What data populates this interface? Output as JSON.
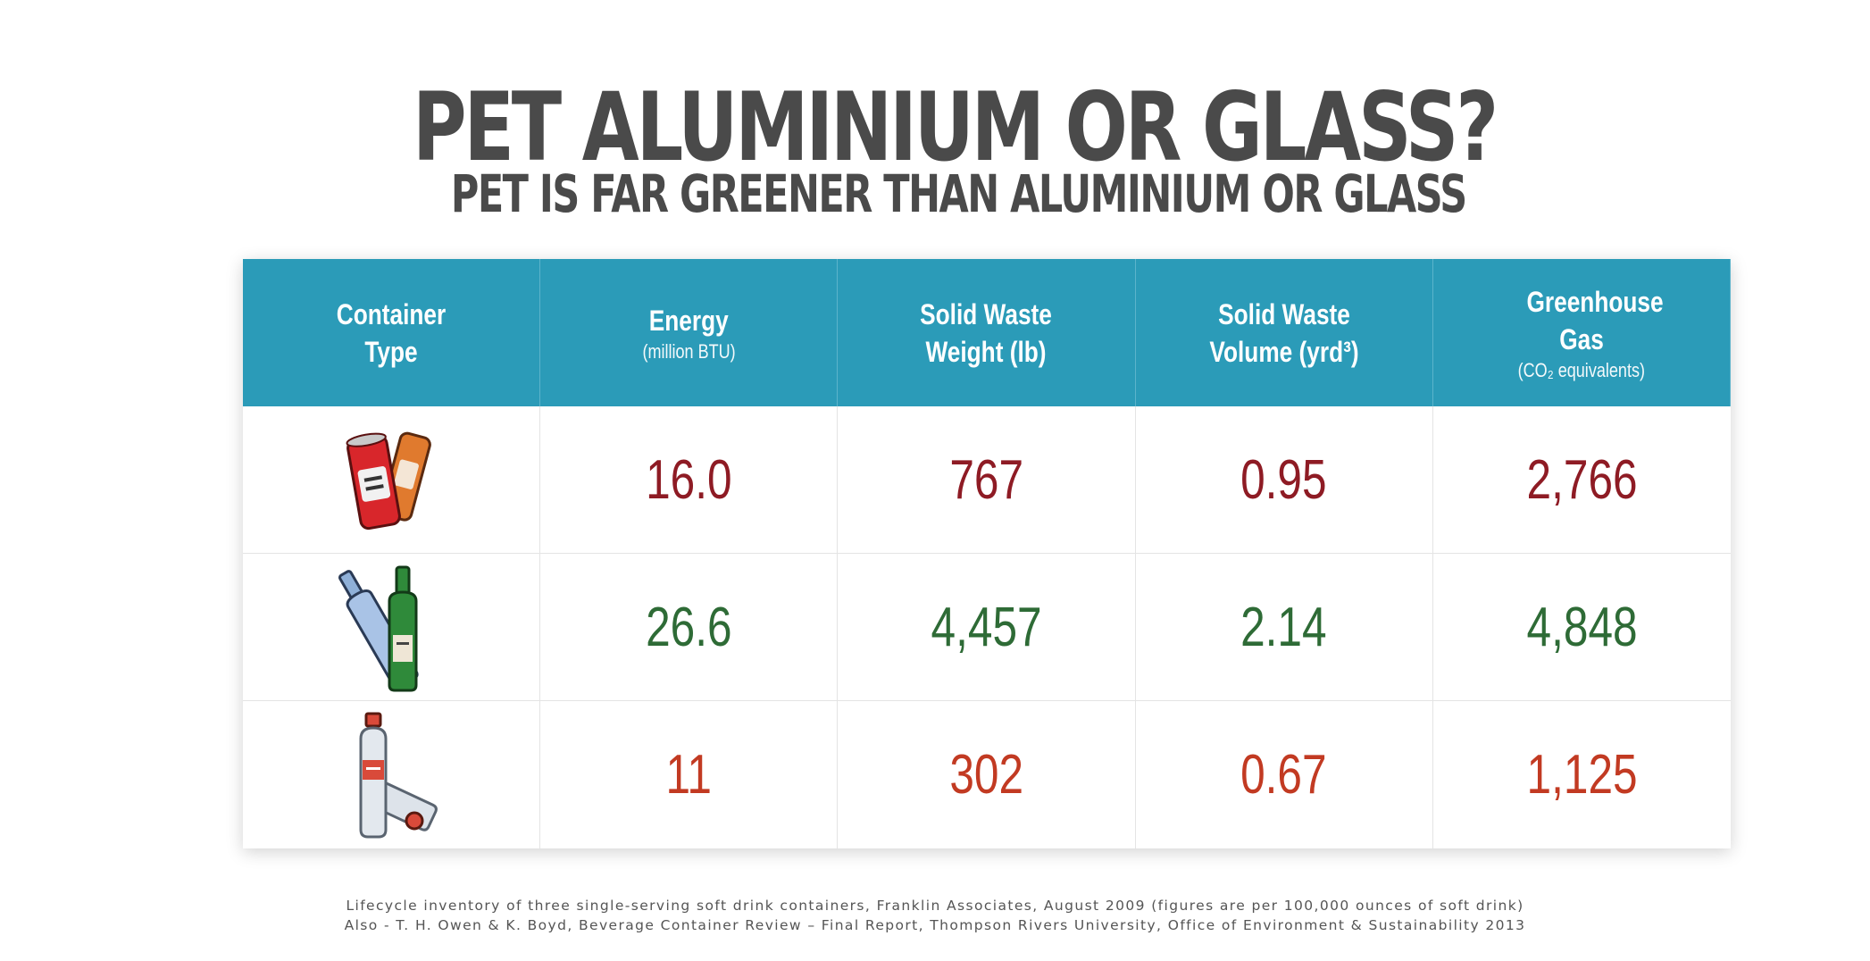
{
  "title": "PET ALUMINIUM OR GLASS?",
  "subtitle": "PET IS FAR GREENER THAN ALUMINIUM OR GLASS",
  "colors": {
    "header_bg": "#2b9bb8",
    "aluminium": "#8e1b24",
    "glass": "#2e6b36",
    "pet": "#c23a22"
  },
  "headers": [
    {
      "main": "Container Type",
      "sub": ""
    },
    {
      "main": "Energy",
      "sub": "(million BTU)"
    },
    {
      "main": "Solid Waste Weight (lb)",
      "sub": ""
    },
    {
      "main": "Solid Waste Volume (yrd³)",
      "sub": ""
    },
    {
      "main": "Greenhouse Gas",
      "sub": "(CO₂ equivalents)"
    }
  ],
  "rows": [
    {
      "icon": "aluminium-cans-icon",
      "values": [
        "16.0",
        "767",
        "0.95",
        "2,766"
      ]
    },
    {
      "icon": "glass-bottles-icon",
      "values": [
        "26.6",
        "4,457",
        "2.14",
        "4,848"
      ]
    },
    {
      "icon": "pet-bottles-icon",
      "values": [
        "11",
        "302",
        "0.67",
        "1,125"
      ]
    }
  ],
  "footnote": [
    "Lifecycle inventory of three single-serving soft drink containers, Franklin Associates, August 2009 (figures are per 100,000 ounces of soft drink)",
    "Also - T. H. Owen & K. Boyd, Beverage Container Review – Final Report, Thompson Rivers University, Office of Environment & Sustainability 2013"
  ]
}
